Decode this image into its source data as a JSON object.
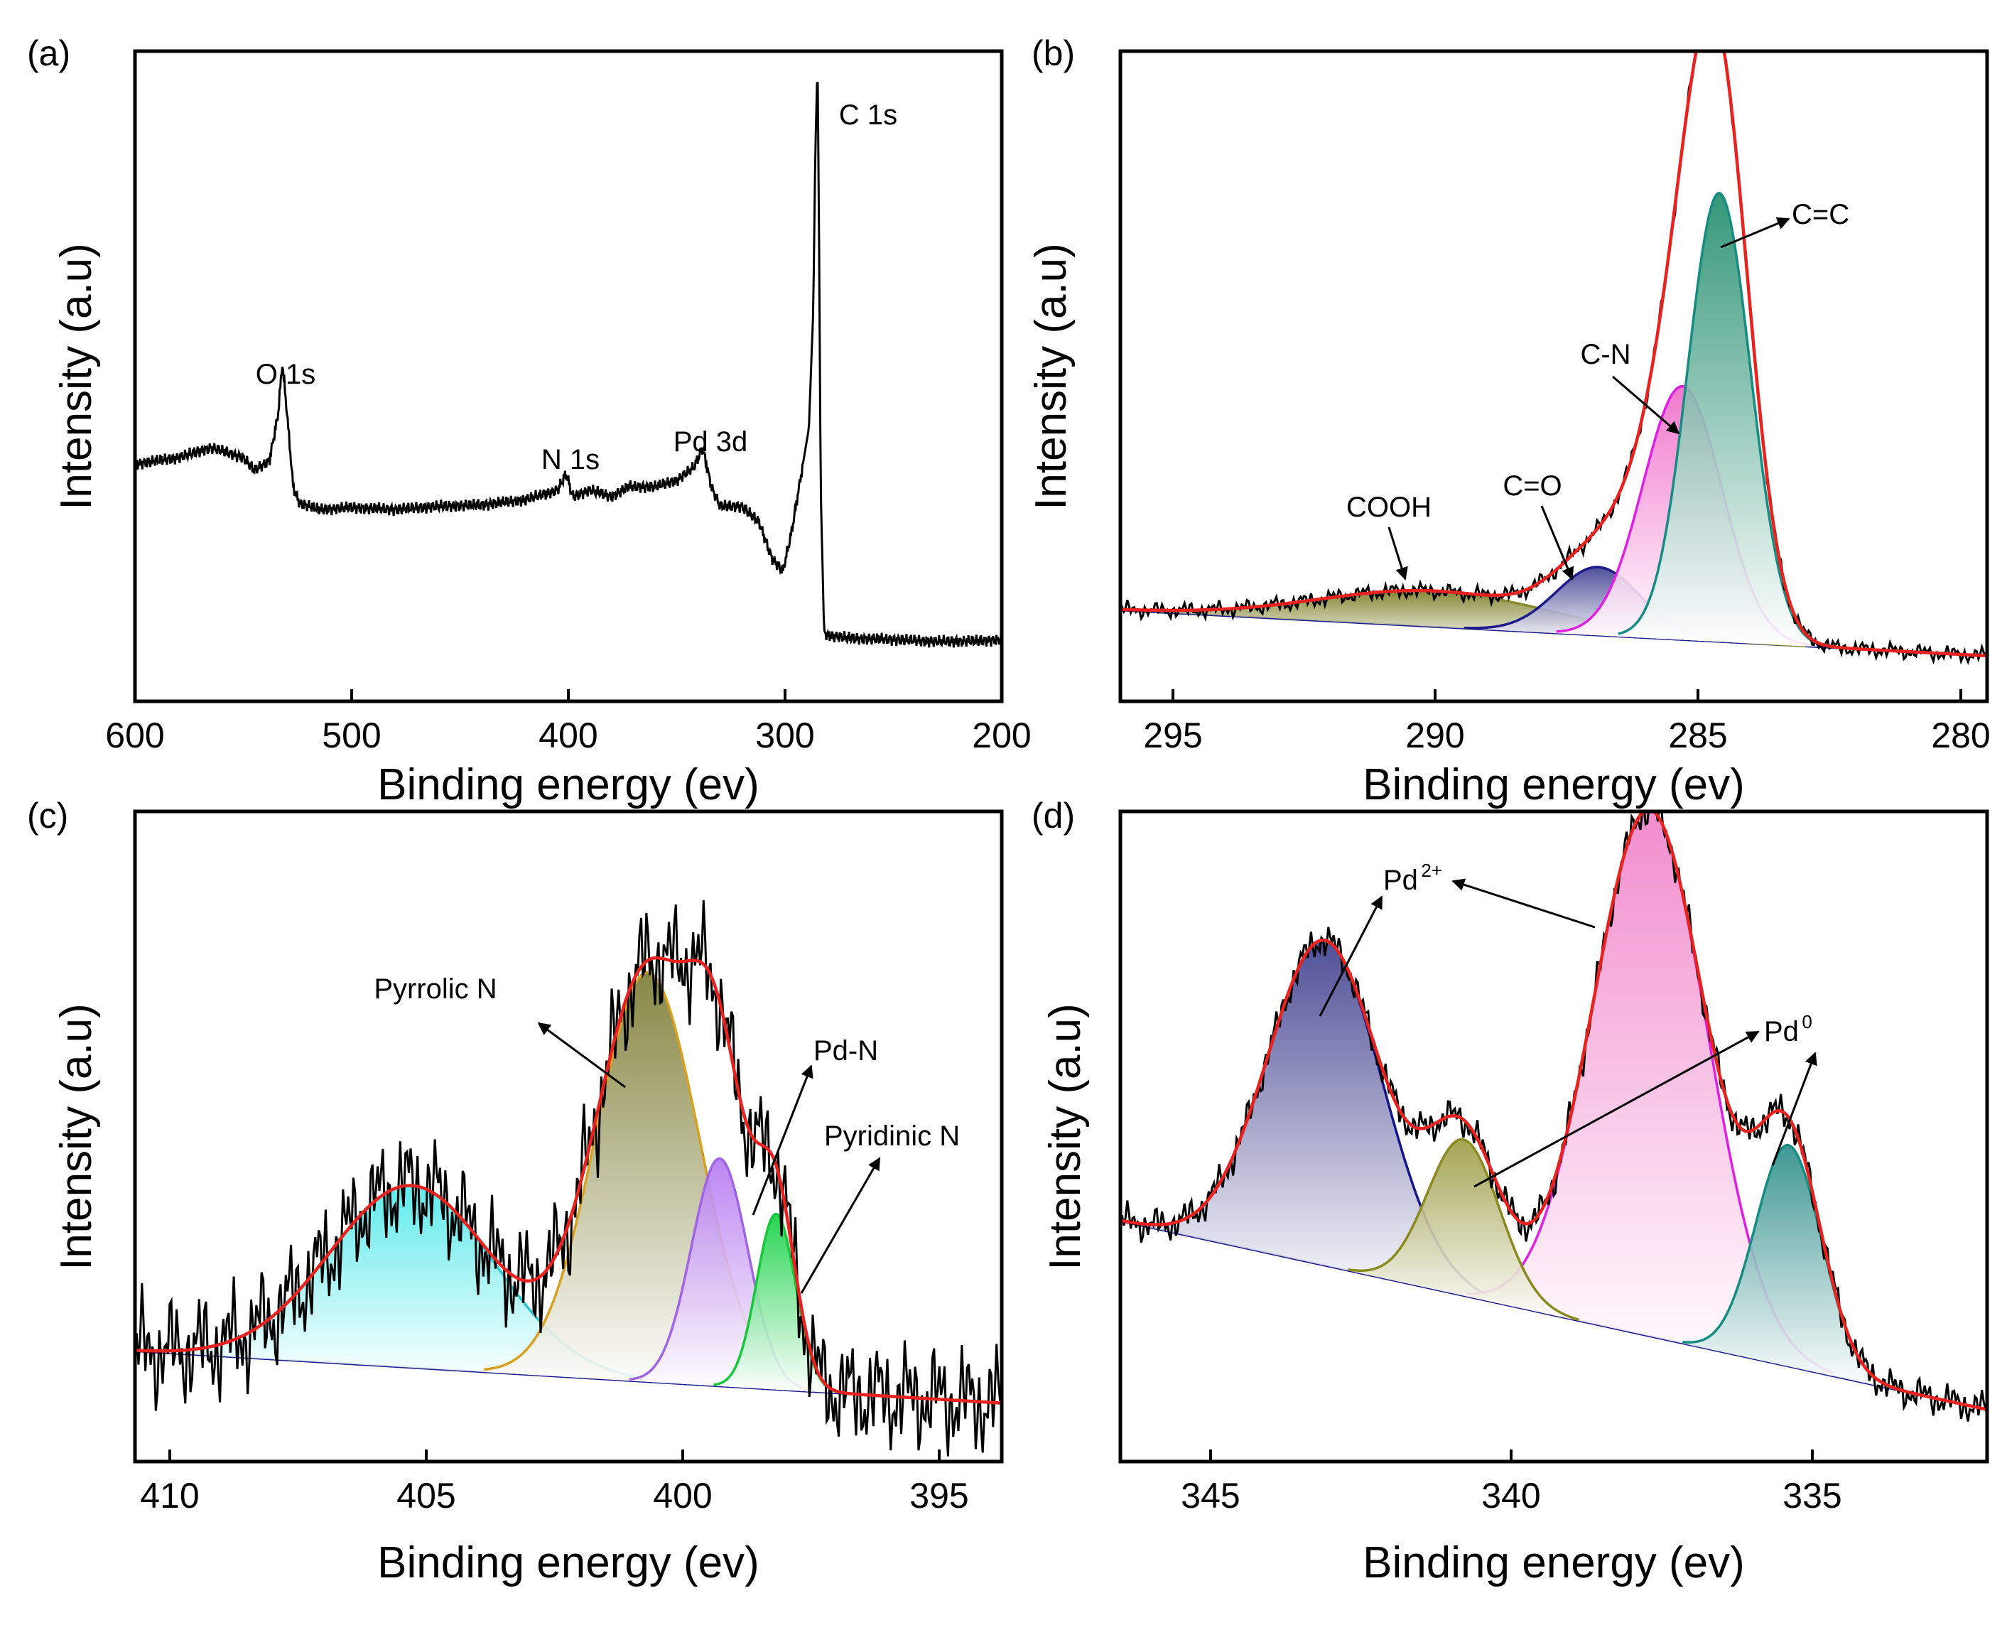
{
  "chart_data": [
    {
      "panel": "(a)",
      "type": "line",
      "xlabel": "Binding energy (ev)",
      "ylabel": "Intensity (a.u)",
      "xlim": [
        600,
        200
      ],
      "ylim": [
        0,
        100
      ],
      "xticks": [
        600,
        500,
        400,
        300,
        200
      ],
      "series": [
        {
          "color": "#000000",
          "x": [
            600,
            580,
            565,
            550,
            545,
            538,
            534,
            532,
            530,
            527,
            524,
            515,
            500,
            480,
            460,
            440,
            420,
            405,
            401,
            398,
            390,
            380,
            372,
            360,
            350,
            342,
            338,
            334,
            330,
            320,
            312,
            306,
            301,
            297,
            292,
            289,
            287,
            286,
            285,
            284.5,
            283.5,
            282,
            281,
            280,
            270,
            250,
            230,
            210,
            200
          ],
          "y": [
            36.5,
            37.5,
            39,
            37.5,
            35.5,
            37,
            44,
            52,
            45,
            33,
            30.5,
            29.5,
            29.8,
            29.5,
            30,
            30.2,
            31,
            32.5,
            35,
            31.5,
            32.5,
            31.5,
            33,
            33,
            34,
            36,
            39,
            33,
            30,
            30,
            27.5,
            22,
            20,
            26,
            36,
            42,
            60,
            85,
            98,
            80,
            32,
            11,
            10.2,
            10.2,
            9.7,
            9.5,
            9.2,
            9.3,
            9.5
          ]
        }
      ],
      "annotations": [
        "O 1s",
        "N 1s",
        "Pd 3d",
        "C 1s"
      ]
    },
    {
      "panel": "(b)",
      "type": "area",
      "xlabel": "Binding energy (ev)",
      "ylabel": "Intensity (a.u)",
      "xlim": [
        296,
        279.5
      ],
      "ylim": [
        0,
        100
      ],
      "xticks": [
        295,
        290,
        285,
        280
      ],
      "baseline": {
        "x": [
          296,
          279.5
        ],
        "y": [
          14,
          7
        ]
      },
      "components": [
        {
          "label": "C=C",
          "center": 284.6,
          "height": 69,
          "width": 0.6,
          "fill": "#1e8c6a",
          "line": "#168c82"
        },
        {
          "label": "C-N",
          "center": 285.3,
          "height": 39,
          "width": 0.75,
          "fill": "#f06ac8",
          "line": "#e020e0"
        },
        {
          "label": "C=O",
          "center": 286.9,
          "height": 10.5,
          "width": 0.8,
          "fill": "#3c3c90",
          "line": "#1c1c8c"
        },
        {
          "label": "COOH",
          "center": 290,
          "height": 5.5,
          "width": 2.2,
          "fill": "#7a7a20",
          "line": "#8a8a30"
        }
      ],
      "envelope_color": "#e8221e",
      "raw_color": "#000000",
      "annotations": [
        "C=C",
        "C-N",
        "C=O",
        "COOH"
      ]
    },
    {
      "panel": "(c)",
      "type": "area",
      "xlabel": "Binding energy (ev)",
      "ylabel": "Intensity (a.u)",
      "xlim": [
        410.8,
        393.9
      ],
      "ylim": [
        0,
        100
      ],
      "xticks": [
        410,
        405,
        400,
        395
      ],
      "baseline": {
        "x": [
          410.8,
          393.9
        ],
        "y": [
          17,
          9
        ]
      },
      "components": [
        {
          "label": "Pyrrolic N",
          "center": 405.4,
          "height": 28,
          "width": 1.6,
          "fill": "#4ee8e8",
          "line": "#28c8d2"
        },
        {
          "label": "Pyrrolic N",
          "center": 400.8,
          "height": 63,
          "width": 1.0,
          "fill": "#7a7a30",
          "line": "#d8a020"
        },
        {
          "label": "Pd-N",
          "center": 399.4,
          "height": 35,
          "width": 0.55,
          "fill": "#b478f0",
          "line": "#a064e6"
        },
        {
          "label": "Pyridinic N",
          "center": 398.3,
          "height": 27,
          "width": 0.38,
          "fill": "#10d040",
          "line": "#18c83c"
        }
      ],
      "envelope_color": "#e8221e",
      "raw_color": "#000000",
      "annotations": [
        "Pyrrolic N",
        "Pd-N",
        "Pyridinic N"
      ]
    },
    {
      "panel": "(d)",
      "type": "area",
      "xlabel": "Binding energy (ev)",
      "ylabel": "Intensity (a.u)",
      "xlim": [
        346.7,
        332.3
      ],
      "ylim": [
        0,
        100
      ],
      "xticks": [
        345,
        340,
        335
      ],
      "baseline": {
        "x": [
          346.7,
          332.3
        ],
        "y": [
          37,
          8
        ]
      },
      "components": [
        {
          "label": "Pd2+",
          "center": 343.3,
          "height": 50,
          "width": 0.95,
          "fill": "#3c3c8c",
          "line": "#14148c"
        },
        {
          "label": "Pd0",
          "center": 341,
          "height": 24,
          "width": 0.6,
          "fill": "#9a9a40",
          "line": "#8a8a20"
        },
        {
          "label": "Pd2+",
          "center": 337.9,
          "height": 81,
          "width": 0.95,
          "fill": "#f080c8",
          "line": "#e020e0"
        },
        {
          "label": "Pd0",
          "center": 335.6,
          "height": 34,
          "width": 0.55,
          "fill": "#2a8c88",
          "line": "#168c82"
        }
      ],
      "envelope_color": "#e8221e",
      "raw_color": "#000000",
      "annotations": [
        "Pd",
        "2+",
        "Pd",
        "0"
      ]
    }
  ]
}
